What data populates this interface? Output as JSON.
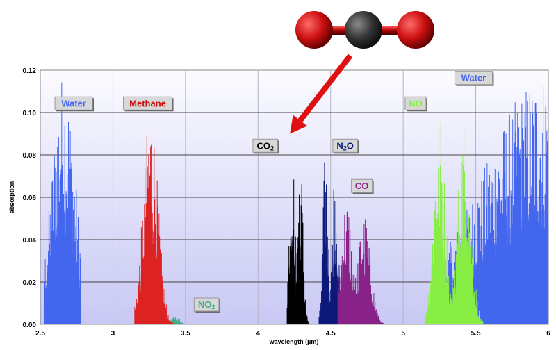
{
  "chart_data": {
    "type": "line",
    "xlabel": "wavelength (µm)",
    "ylabel": "absorption",
    "xlim": [
      2.5,
      6.0
    ],
    "ylim": [
      0,
      0.12
    ],
    "x_ticks": [
      "2.5",
      "3",
      "3.5",
      "4",
      "4.5",
      "5",
      "5.5",
      "6"
    ],
    "y_ticks": [
      "0.00",
      "0.02",
      "0.04",
      "0.06",
      "0.08",
      "0.10",
      "0.12"
    ],
    "grid": true,
    "background": "lavender gradient",
    "series": [
      {
        "name": "Water",
        "color": "#4466ee",
        "bands": [
          {
            "min": 2.53,
            "max": 2.78,
            "center": 2.66,
            "width": 0.08,
            "peak": 0.12
          },
          {
            "min": 5.2,
            "max": 6.0,
            "center": 6.0,
            "width": 0.45,
            "peak": 0.12
          }
        ]
      },
      {
        "name": "Methane",
        "color": "#dd2222",
        "bands": [
          {
            "min": 3.15,
            "max": 3.48,
            "center": 3.26,
            "width": 0.05,
            "peak": 0.104
          }
        ]
      },
      {
        "name": "NO2",
        "color": "#44aa88",
        "bands": [
          {
            "min": 3.38,
            "max": 3.5,
            "center": 3.43,
            "width": 0.03,
            "peak": 0.004
          }
        ]
      },
      {
        "name": "CO2",
        "color": "#000000",
        "bands": [
          {
            "min": 4.2,
            "max": 4.35,
            "center": 4.235,
            "width": 0.02,
            "peak": 0.089
          },
          {
            "min": 4.2,
            "max": 4.35,
            "center": 4.29,
            "width": 0.02,
            "peak": 0.083
          }
        ]
      },
      {
        "name": "N2O",
        "color": "#0c1a7a",
        "bands": [
          {
            "min": 4.42,
            "max": 4.6,
            "center": 4.465,
            "width": 0.018,
            "peak": 0.085
          },
          {
            "min": 4.42,
            "max": 4.6,
            "center": 4.53,
            "width": 0.02,
            "peak": 0.079
          }
        ]
      },
      {
        "name": "CO",
        "color": "#882288",
        "bands": [
          {
            "min": 4.55,
            "max": 4.95,
            "center": 4.61,
            "width": 0.04,
            "peak": 0.061
          },
          {
            "min": 4.55,
            "max": 4.95,
            "center": 4.73,
            "width": 0.045,
            "peak": 0.053
          }
        ]
      },
      {
        "name": "NO",
        "color": "#88ee44",
        "bands": [
          {
            "min": 5.15,
            "max": 5.55,
            "center": 5.25,
            "width": 0.04,
            "peak": 0.102
          },
          {
            "min": 5.15,
            "max": 5.55,
            "center": 5.42,
            "width": 0.045,
            "peak": 0.097
          }
        ]
      }
    ],
    "labels": [
      {
        "text": "Water",
        "sub": "",
        "color": "#4466ee",
        "x": 2.73,
        "y": 0.1045
      },
      {
        "text": "Methane",
        "sub": "",
        "color": "#cc1111",
        "x": 3.24,
        "y": 0.1045
      },
      {
        "text": "CO",
        "sub": "2",
        "color": "#000000",
        "x": 4.05,
        "y": 0.0845
      },
      {
        "text": "N",
        "sub": "2",
        "tail": "O",
        "color": "#0c1a7a",
        "x": 4.6,
        "y": 0.0845
      },
      {
        "text": "CO",
        "sub": "",
        "color": "#882288",
        "x": 4.715,
        "y": 0.0655
      },
      {
        "text": "NO",
        "sub": "",
        "color": "#88ee44",
        "x": 5.085,
        "y": 0.1045
      },
      {
        "text": "Water",
        "sub": "",
        "color": "#4466ee",
        "x": 5.485,
        "y": 0.1165
      },
      {
        "text": "NO",
        "sub": "2",
        "color": "#44aa88",
        "x": 3.645,
        "y": 0.0095
      }
    ],
    "annotation": {
      "type": "arrow",
      "color": "#e01010",
      "points_to": {
        "x": 4.22,
        "y": 0.09
      }
    }
  },
  "molecule": {
    "name": "CO2",
    "atoms": [
      "O",
      "C",
      "O"
    ],
    "colors": {
      "O": "#cc1111",
      "C": "#333333"
    }
  }
}
